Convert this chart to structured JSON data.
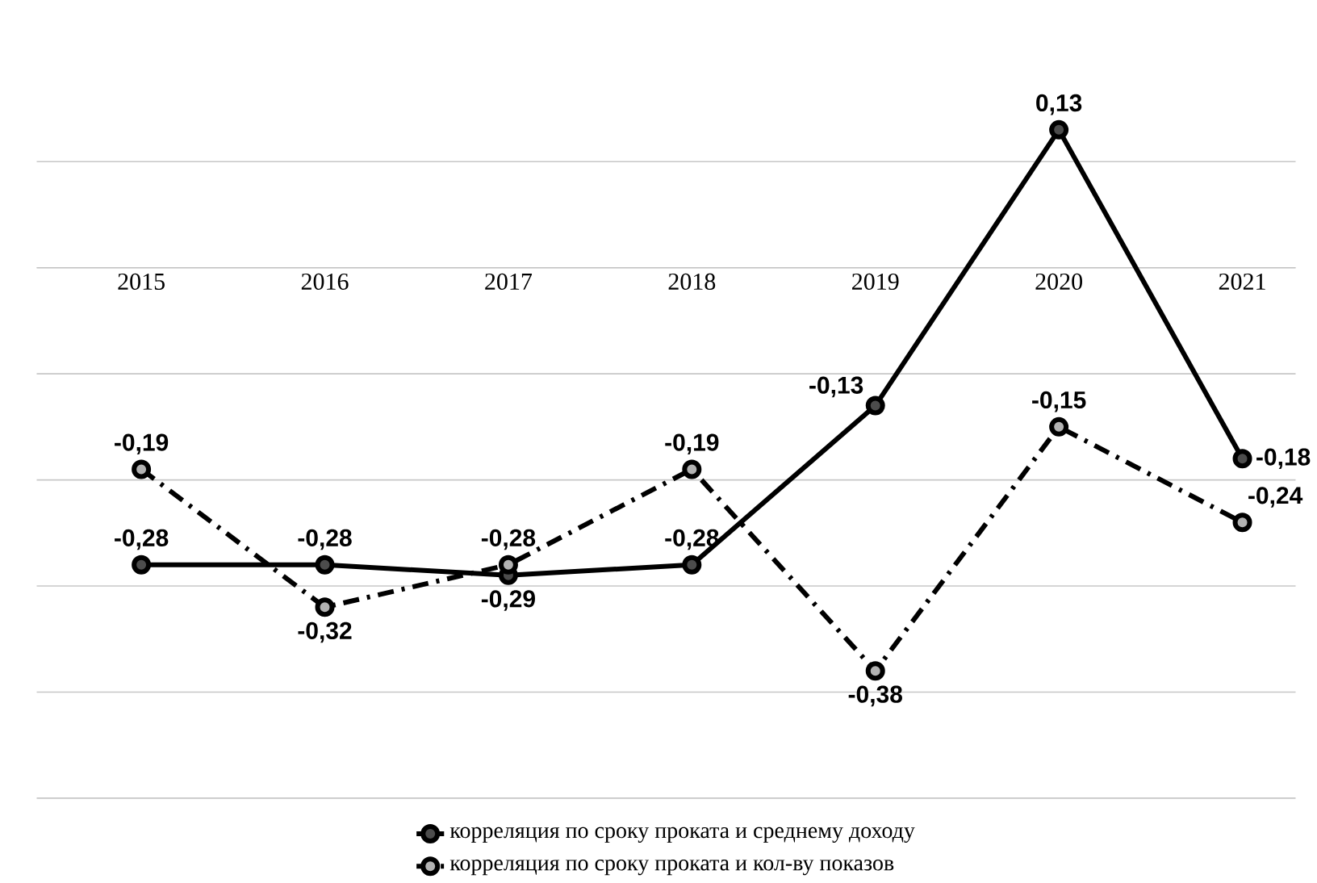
{
  "chart_data": {
    "type": "line",
    "categories": [
      "2015",
      "2016",
      "2017",
      "2018",
      "2019",
      "2020",
      "2021"
    ],
    "series": [
      {
        "name": "корреляция по сроку проката и среднему доходу",
        "color": "#000000",
        "values": [
          -0.28,
          -0.28,
          -0.29,
          -0.28,
          -0.13,
          0.13,
          -0.18
        ],
        "value_labels": [
          "-0,28",
          "-0,28",
          "-0,29",
          "-0,28",
          "-0,13",
          "0,13",
          "-0,18"
        ],
        "line_style": "solid"
      },
      {
        "name": "корреляция по сроку проката и кол-ву показов",
        "color": "#000000",
        "values": [
          -0.19,
          -0.32,
          -0.28,
          -0.19,
          -0.38,
          -0.15,
          -0.24
        ],
        "value_labels": [
          "-0,19",
          "-0,32",
          "-0,28",
          "-0,19",
          "-0,38",
          "-0,15",
          "-0,24"
        ],
        "line_style": "dashdot"
      }
    ],
    "yticks": [
      {
        "value": -0.5,
        "label": null
      },
      {
        "value": -0.4,
        "label": null
      },
      {
        "value": -0.3,
        "label": null
      },
      {
        "value": -0.2,
        "label": null
      },
      {
        "value": -0.1,
        "label": null
      },
      {
        "value": 0,
        "label": null
      },
      {
        "value": 0.1,
        "label": null
      }
    ],
    "grid": "y",
    "legend": "bottom",
    "marker": "circle",
    "tick_labels": "x"
  }
}
